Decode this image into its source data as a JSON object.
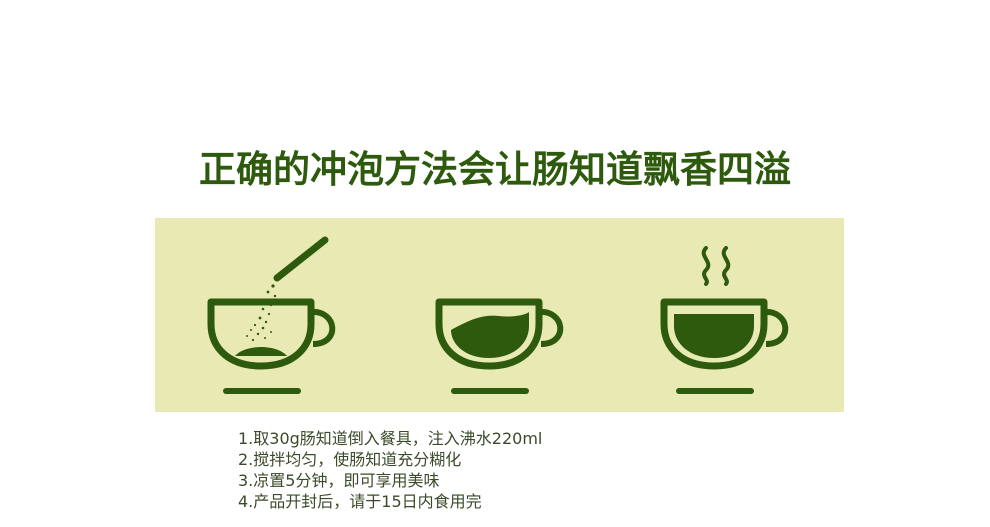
{
  "headline": "正确的冲泡方法会让肠知道飘香四溢",
  "colors": {
    "accent": "#2d5a0d",
    "panel_background": "#e9e9b3",
    "cup": "#2d5a0d",
    "text": "#3a4a2a"
  },
  "illustrations": [
    {
      "icon": "cup-with-powder-sachet-icon"
    },
    {
      "icon": "cup-half-filled-icon"
    },
    {
      "icon": "steaming-cup-icon"
    }
  ],
  "steps": [
    "1.取30g肠知道倒入餐具，注入沸水220ml",
    "2.搅拌均匀，使肠知道充分糊化",
    "3.凉置5分钟，即可享用美味",
    "4.产品开封后，请于15日内食用完"
  ]
}
